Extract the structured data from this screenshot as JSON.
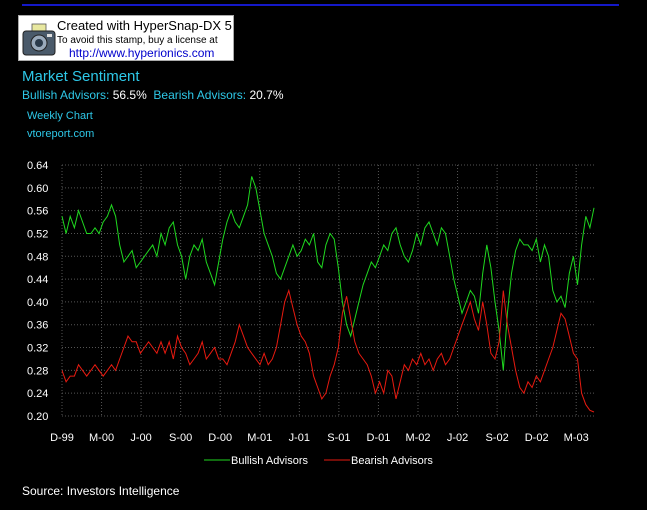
{
  "stamp": {
    "line1": "Created with HyperSnap-DX 5",
    "line2": "To avoid this stamp, buy a license at",
    "line3": "http://www.hyperionics.com"
  },
  "header": {
    "title": "Market Sentiment",
    "bullish_label": "Bullish Advisors:",
    "bullish_value": "56.5%",
    "bearish_label": "Bearish Advisors:",
    "bearish_value": "20.7%",
    "subtitle": "Weekly Chart",
    "site": "vtoreport.com"
  },
  "footer": {
    "source": "Source: Investors Intelligence"
  },
  "colors": {
    "bullish": "#1fd81f",
    "bearish": "#e81a10",
    "accent": "#2ec8e8",
    "grid": "#555555"
  },
  "chart_data": {
    "type": "line",
    "title": "Market Sentiment",
    "xlabel": "",
    "ylabel": "",
    "ylim": [
      0.2,
      0.64
    ],
    "yticks": [
      "0.64",
      "0.60",
      "0.56",
      "0.52",
      "0.48",
      "0.44",
      "0.40",
      "0.36",
      "0.32",
      "0.28",
      "0.24",
      "0.20"
    ],
    "xticks": [
      "D-99",
      "M-00",
      "J-00",
      "S-00",
      "D-00",
      "M-01",
      "J-01",
      "S-01",
      "D-01",
      "M-02",
      "J-02",
      "S-02",
      "D-02",
      "M-03"
    ],
    "legend": {
      "position": "bottom"
    },
    "series": [
      {
        "name": "Bullish Advisors",
        "color": "#1fd81f",
        "values": [
          0.55,
          0.52,
          0.55,
          0.53,
          0.56,
          0.54,
          0.52,
          0.52,
          0.53,
          0.52,
          0.54,
          0.55,
          0.57,
          0.55,
          0.5,
          0.47,
          0.48,
          0.49,
          0.46,
          0.47,
          0.48,
          0.49,
          0.5,
          0.48,
          0.52,
          0.5,
          0.53,
          0.54,
          0.5,
          0.48,
          0.44,
          0.48,
          0.5,
          0.49,
          0.51,
          0.47,
          0.45,
          0.43,
          0.47,
          0.51,
          0.54,
          0.56,
          0.54,
          0.53,
          0.55,
          0.57,
          0.62,
          0.6,
          0.56,
          0.52,
          0.5,
          0.48,
          0.45,
          0.44,
          0.46,
          0.48,
          0.5,
          0.48,
          0.49,
          0.51,
          0.5,
          0.52,
          0.47,
          0.46,
          0.5,
          0.52,
          0.51,
          0.46,
          0.4,
          0.36,
          0.34,
          0.37,
          0.4,
          0.43,
          0.45,
          0.47,
          0.46,
          0.48,
          0.5,
          0.49,
          0.52,
          0.53,
          0.5,
          0.48,
          0.47,
          0.49,
          0.52,
          0.5,
          0.53,
          0.54,
          0.52,
          0.5,
          0.53,
          0.52,
          0.48,
          0.44,
          0.41,
          0.38,
          0.4,
          0.42,
          0.41,
          0.38,
          0.45,
          0.5,
          0.46,
          0.4,
          0.35,
          0.28,
          0.38,
          0.45,
          0.49,
          0.51,
          0.5,
          0.5,
          0.49,
          0.51,
          0.47,
          0.5,
          0.48,
          0.42,
          0.4,
          0.41,
          0.39,
          0.45,
          0.48,
          0.43,
          0.5,
          0.55,
          0.53,
          0.565
        ]
      },
      {
        "name": "Bearish Advisors",
        "color": "#e81a10",
        "values": [
          0.28,
          0.26,
          0.27,
          0.27,
          0.29,
          0.28,
          0.27,
          0.28,
          0.29,
          0.28,
          0.27,
          0.28,
          0.29,
          0.28,
          0.3,
          0.32,
          0.34,
          0.33,
          0.33,
          0.31,
          0.32,
          0.33,
          0.32,
          0.31,
          0.33,
          0.31,
          0.33,
          0.3,
          0.34,
          0.32,
          0.31,
          0.29,
          0.3,
          0.31,
          0.33,
          0.3,
          0.31,
          0.32,
          0.3,
          0.3,
          0.29,
          0.31,
          0.33,
          0.36,
          0.34,
          0.32,
          0.31,
          0.3,
          0.29,
          0.31,
          0.29,
          0.3,
          0.32,
          0.36,
          0.4,
          0.42,
          0.39,
          0.36,
          0.34,
          0.33,
          0.31,
          0.27,
          0.25,
          0.23,
          0.24,
          0.27,
          0.29,
          0.32,
          0.38,
          0.41,
          0.37,
          0.33,
          0.31,
          0.3,
          0.29,
          0.27,
          0.24,
          0.26,
          0.24,
          0.28,
          0.27,
          0.23,
          0.26,
          0.29,
          0.28,
          0.3,
          0.29,
          0.31,
          0.29,
          0.3,
          0.28,
          0.3,
          0.31,
          0.29,
          0.3,
          0.32,
          0.34,
          0.36,
          0.38,
          0.4,
          0.37,
          0.35,
          0.4,
          0.36,
          0.31,
          0.3,
          0.33,
          0.42,
          0.36,
          0.32,
          0.28,
          0.25,
          0.24,
          0.26,
          0.25,
          0.27,
          0.26,
          0.28,
          0.3,
          0.32,
          0.35,
          0.38,
          0.37,
          0.34,
          0.31,
          0.3,
          0.24,
          0.22,
          0.21,
          0.207
        ]
      }
    ]
  }
}
